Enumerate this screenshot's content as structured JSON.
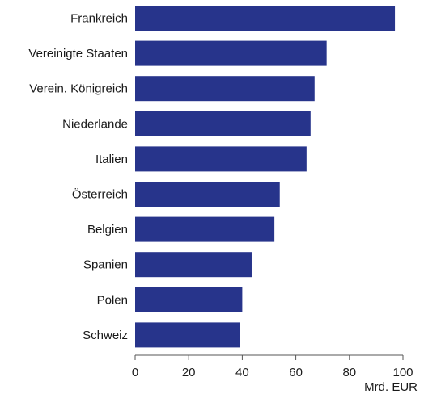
{
  "chart_data": {
    "type": "bar",
    "orientation": "horizontal",
    "categories": [
      "Frankreich",
      "Vereinigte Staaten",
      "Verein. Königreich",
      "Niederlande",
      "Italien",
      "Österreich",
      "Belgien",
      "Spanien",
      "Polen",
      "Schweiz"
    ],
    "values": [
      97,
      71.5,
      67,
      65.5,
      64,
      54,
      52,
      43.5,
      40,
      39
    ],
    "xlim": [
      0,
      100
    ],
    "xticks": [
      "0",
      "20",
      "40",
      "60",
      "80",
      "100"
    ],
    "xlabel": "Mrd. EUR",
    "ylabel": "",
    "title": "",
    "grid": false,
    "bar_color": "#27348b"
  }
}
